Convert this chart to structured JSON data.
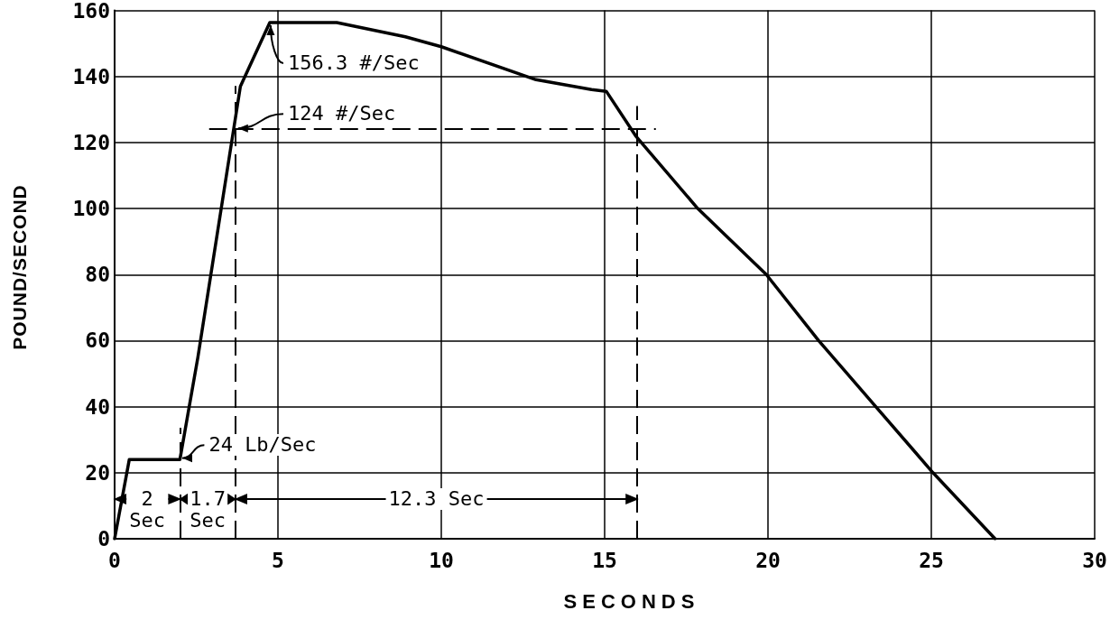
{
  "chart_data": {
    "type": "line",
    "xlabel": "SECONDS",
    "ylabel": "POUND/SECOND",
    "x": [
      0,
      0.45,
      2,
      2.55,
      3.85,
      4.75,
      6.8,
      8.9,
      10,
      12.9,
      14.6,
      15.05,
      15.95,
      17.85,
      19.95,
      21.55,
      23.3,
      25.05,
      26.95
    ],
    "values": [
      0,
      24,
      24,
      55,
      137,
      156.3,
      156.3,
      152,
      149,
      139,
      136,
      135.5,
      122,
      100,
      80,
      60,
      40,
      20,
      0
    ],
    "color": "#000000",
    "marker": "none",
    "line_style": "solid",
    "xlim": [
      0,
      30
    ],
    "xticks": [
      0,
      5,
      10,
      15,
      20,
      25,
      30
    ],
    "ylim": [
      0,
      160
    ],
    "yticks": [
      0,
      20,
      40,
      60,
      80,
      100,
      120,
      140,
      160
    ],
    "grid": true,
    "ref_lines": [
      {
        "axis": "x",
        "value": 2,
        "color": "#000000",
        "line_style": "dashed"
      },
      {
        "axis": "x",
        "value": 3.7,
        "color": "#000000",
        "line_style": "dashed"
      },
      {
        "axis": "x",
        "value": 16,
        "color": "#000000",
        "line_style": "dashed"
      },
      {
        "axis": "y",
        "value": 124,
        "color": "#000000",
        "line_style": "dashed"
      }
    ],
    "annotations": [
      {
        "text": "156.3 #/Sec",
        "x": 4.75,
        "y": 156.3
      },
      {
        "text": "124 #/Sec",
        "x": 3.7,
        "y": 124
      },
      {
        "text": "24 Lb/Sec",
        "x": 2,
        "y": 24
      },
      {
        "text": "2\nSec",
        "x": 2,
        "y": 12
      },
      {
        "text": "1.7\nSec",
        "x": 3.7,
        "y": 12
      },
      {
        "text": "12.3 Sec",
        "x": 16,
        "y": 12
      }
    ]
  }
}
